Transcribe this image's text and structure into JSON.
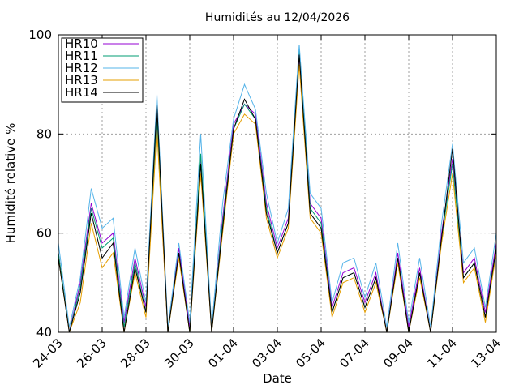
{
  "chart_data": {
    "type": "line",
    "title": "Humidités au 12/04/2026",
    "xlabel": "Date",
    "ylabel": "Humidité relative %",
    "ylim": [
      40,
      100
    ],
    "xlim": [
      "2026-03-24",
      "2026-04-13"
    ],
    "y_ticks": [
      40,
      60,
      80,
      100
    ],
    "x_ticks": [
      "24-03",
      "26-03",
      "28-03",
      "30-03",
      "01-04",
      "03-04",
      "05-04",
      "07-04",
      "09-04",
      "11-04",
      "13-04"
    ],
    "grid": true,
    "legend_position": "top-left",
    "x": [
      "2026-03-24",
      "2026-03-24T12:00",
      "2026-03-25",
      "2026-03-25T12:00",
      "2026-03-26",
      "2026-03-26T12:00",
      "2026-03-27",
      "2026-03-27T12:00",
      "2026-03-28",
      "2026-03-28T12:00",
      "2026-03-29",
      "2026-03-29T12:00",
      "2026-03-30",
      "2026-03-30T12:00",
      "2026-03-31",
      "2026-03-31T12:00",
      "2026-04-01",
      "2026-04-01T12:00",
      "2026-04-02",
      "2026-04-02T12:00",
      "2026-04-03",
      "2026-04-03T12:00",
      "2026-04-04",
      "2026-04-04T12:00",
      "2026-04-05",
      "2026-04-05T12:00",
      "2026-04-06",
      "2026-04-06T12:00",
      "2026-04-07",
      "2026-04-07T12:00",
      "2026-04-08",
      "2026-04-08T12:00",
      "2026-04-09",
      "2026-04-09T12:00",
      "2026-04-10",
      "2026-04-10T12:00",
      "2026-04-11",
      "2026-04-11T12:00",
      "2026-04-12",
      "2026-04-12T12:00",
      "2026-04-13"
    ],
    "series": [
      {
        "name": "HR10",
        "color": "#9400d3",
        "values": [
          56,
          40,
          50,
          66,
          58,
          60,
          42,
          55,
          45,
          82,
          40,
          57,
          41,
          75,
          40,
          63,
          82,
          86,
          84,
          66,
          57,
          63,
          96,
          66,
          63,
          45,
          52,
          53,
          46,
          52,
          40,
          56,
          41,
          53,
          40,
          60,
          75,
          52,
          55,
          44,
          58
        ]
      },
      {
        "name": "HR11",
        "color": "#009e73",
        "values": [
          56,
          40,
          49,
          65,
          57,
          59,
          41,
          54,
          44,
          84,
          40,
          56,
          40,
          76,
          40,
          62,
          81,
          86,
          83,
          65,
          56,
          62,
          97,
          65,
          62,
          44,
          51,
          52,
          45,
          51,
          40,
          55,
          40,
          52,
          40,
          59,
          74,
          51,
          54,
          43,
          57
        ]
      },
      {
        "name": "HR12",
        "color": "#56b4e9",
        "values": [
          58,
          41,
          51,
          69,
          61,
          63,
          43,
          57,
          46,
          88,
          41,
          58,
          42,
          80,
          41,
          66,
          83,
          90,
          85,
          68,
          58,
          65,
          98,
          68,
          65,
          46,
          54,
          55,
          47,
          54,
          41,
          58,
          42,
          55,
          41,
          62,
          78,
          54,
          57,
          45,
          60
        ]
      },
      {
        "name": "HR13",
        "color": "#e69f00",
        "values": [
          55,
          40,
          46,
          62,
          53,
          56,
          40,
          52,
          43,
          81,
          40,
          55,
          40,
          72,
          40,
          60,
          80,
          84,
          82,
          63,
          55,
          61,
          94,
          63,
          60,
          43,
          50,
          51,
          44,
          50,
          40,
          54,
          40,
          51,
          40,
          58,
          72,
          50,
          53,
          42,
          56
        ]
      },
      {
        "name": "HR14",
        "color": "#000000",
        "values": [
          55,
          40,
          48,
          64,
          55,
          58,
          40,
          53,
          44,
          86,
          40,
          56,
          40,
          74,
          40,
          61,
          81,
          87,
          83,
          64,
          56,
          62,
          96,
          64,
          61,
          44,
          51,
          52,
          45,
          51,
          40,
          55,
          40,
          52,
          40,
          59,
          77,
          51,
          54,
          43,
          57
        ]
      }
    ]
  }
}
